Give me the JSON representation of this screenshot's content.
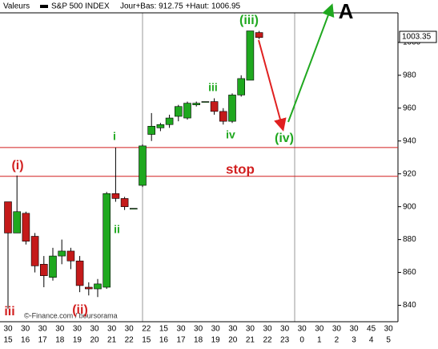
{
  "chart_data": {
    "type": "candlestick",
    "legend_label": "Valeurs",
    "title": "S&P 500 INDEX",
    "subtitle": "Jour+Bas: 912.75 +Haut: 1006.95",
    "series": [
      {
        "name": "S&P 500 INDEX",
        "up_color": "#1fa81f",
        "down_color": "#c41a1a",
        "open": [
          903,
          884,
          896,
          882,
          865,
          857,
          870,
          873,
          867,
          851,
          850,
          851,
          908,
          905,
          899,
          913,
          944,
          948,
          950,
          955,
          954,
          962,
          964,
          964,
          958,
          952,
          968,
          977,
          1006
        ],
        "high": [
          903,
          919,
          897,
          884,
          870,
          875,
          880,
          875,
          870,
          854,
          856,
          909,
          936,
          906,
          899,
          938,
          957,
          951,
          956,
          962,
          964,
          964,
          964,
          966,
          960,
          969,
          980,
          1007,
          1007
        ],
        "low": [
          838,
          884,
          877,
          860,
          851,
          855,
          865,
          862,
          848,
          846,
          845,
          850,
          903,
          898,
          899,
          912,
          940,
          946,
          948,
          952,
          953,
          961,
          964,
          956,
          950,
          951,
          967,
          977,
          1002
        ],
        "close": [
          884,
          897,
          879,
          864,
          858,
          870,
          873,
          867,
          852,
          850,
          853,
          908,
          905,
          900,
          899,
          937,
          949,
          950,
          954,
          961,
          963,
          963,
          964,
          958,
          952,
          968,
          978,
          1007,
          1003
        ]
      }
    ],
    "last_price": 1003.35,
    "hlines": [
      936,
      918.5
    ],
    "hline_color": "#d21f1f",
    "ylim": [
      830,
      1018
    ],
    "yticks": [
      840,
      860,
      880,
      900,
      920,
      940,
      960,
      980,
      1000
    ],
    "xticks_top": [
      "30",
      "30",
      "30",
      "30",
      "30",
      "30",
      "30",
      "30",
      "22",
      "15",
      "30",
      "30",
      "30",
      "30",
      "30",
      "30",
      "30",
      "30",
      "30",
      "30",
      "30",
      "45",
      "30"
    ],
    "xticks_bottom": [
      "15",
      "16",
      "17",
      "18",
      "19",
      "20",
      "21",
      "22",
      "15",
      "16",
      "17",
      "18",
      "19",
      "20",
      "21",
      "22",
      "23",
      "0",
      "1",
      "2",
      "3",
      "4",
      "5"
    ],
    "annotations": [
      {
        "text": "(iii)",
        "color": "#1fa81f"
      },
      {
        "text": "iii",
        "color": "#1fa81f"
      },
      {
        "text": "iv",
        "color": "#1fa81f"
      },
      {
        "text": "i",
        "color": "#1fa81f"
      },
      {
        "text": "ii",
        "color": "#1fa81f"
      },
      {
        "text": "(iv)",
        "color": "#1fa81f"
      },
      {
        "text": "(i)",
        "color": "#d21f1f"
      },
      {
        "text": "stop",
        "color": "#d21f1f"
      },
      {
        "text": "(ii)",
        "color": "#d21f1f"
      },
      {
        "text": "iii",
        "color": "#d21f1f"
      },
      {
        "text": "A",
        "color": "#000000"
      }
    ],
    "watermark": "©-Finance.com / boursorama"
  }
}
